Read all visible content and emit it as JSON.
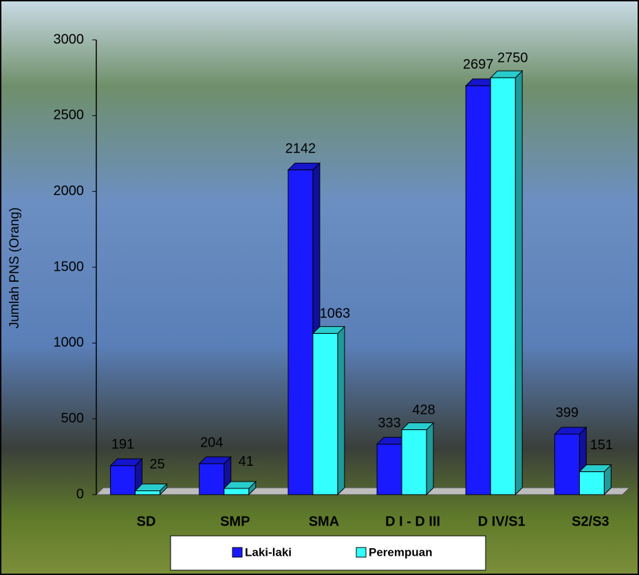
{
  "chart_data": {
    "type": "bar3d",
    "y_label": "Jumlah PNS (Orang)",
    "categories": [
      "SD",
      "SMP",
      "SMA",
      "D I - D III",
      "D IV/S1",
      "S2/S3"
    ],
    "series": [
      {
        "name": "Laki-laki",
        "color": "#1a1aff",
        "values": [
          191,
          204,
          2142,
          333,
          2697,
          399
        ]
      },
      {
        "name": "Perempuan",
        "color": "#33ffff",
        "values": [
          25,
          41,
          1063,
          428,
          2750,
          151
        ]
      }
    ],
    "ylim": [
      0,
      3000
    ],
    "yticks": [
      0,
      500,
      1000,
      1500,
      2000,
      2500,
      3000
    ],
    "grid": false,
    "legend": "bottom"
  }
}
